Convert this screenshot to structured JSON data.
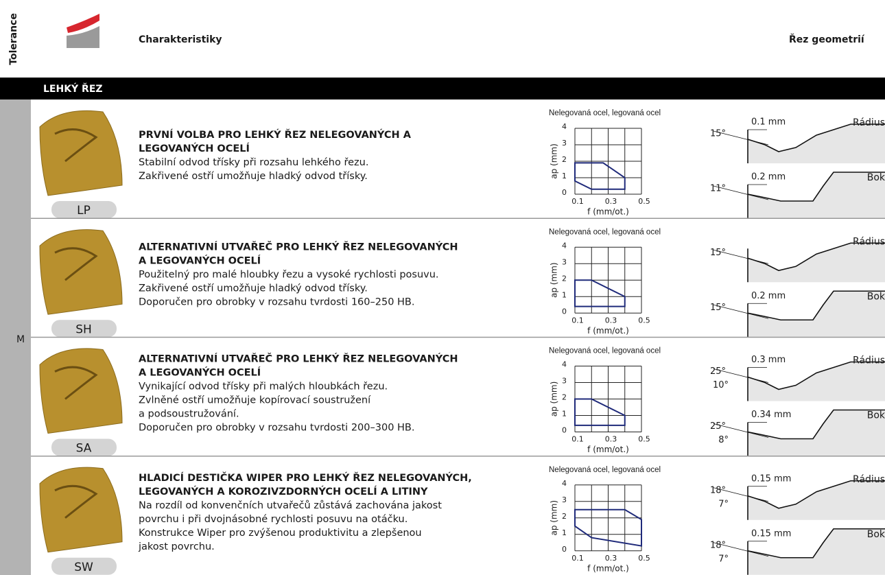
{
  "header": {
    "tolerance": "Tolerance",
    "characteristics": "Charakteristiky",
    "geometry": "Řez geometrií"
  },
  "section": "LEHKÝ ŘEZ",
  "tolerance_class": "M",
  "rows": [
    {
      "code": "LP",
      "heading": [
        "PRVNÍ VOLBA PRO LEHKÝ ŘEZ NELEGOVANÝCH A",
        "LEGOVANÝCH OCELÍ"
      ],
      "description": [
        "Stabilní odvod třísky při rozsahu lehkého řezu.",
        "Zakřivené ostří umožňuje hladký odvod třísky."
      ],
      "chart": {
        "type": "region",
        "title": "Nelegovaná ocel, legovaná ocel",
        "xlabel": "f (mm/ot.)",
        "ylabel": "ap (mm)",
        "xlim": [
          0.1,
          0.5
        ],
        "ylim": [
          0,
          4
        ],
        "xticks": [
          0.1,
          0.3,
          0.5
        ],
        "yticks": [
          0,
          1,
          2,
          3,
          4
        ],
        "xgrid": [
          0.1,
          0.2,
          0.3,
          0.4,
          0.5
        ],
        "color": "#1f2a7a",
        "region": {
          "f": [
            0.1,
            0.27,
            0.4,
            0.4,
            0.2,
            0.1
          ],
          "ap": [
            1.9,
            1.9,
            1.0,
            0.3,
            0.3,
            0.8
          ]
        }
      },
      "profiles": [
        {
          "name": "Rádius",
          "angles": [
            "15°"
          ],
          "width": "0.1 mm"
        },
        {
          "name": "Bok",
          "angles": [
            "11°"
          ],
          "width": "0.2 mm"
        }
      ]
    },
    {
      "code": "SH",
      "heading": [
        "ALTERNATIVNÍ UTVAŘEČ PRO LEHKÝ ŘEZ NELEGOVANÝCH",
        "A LEGOVANÝCH OCELÍ"
      ],
      "description": [
        "Použitelný pro malé hloubky řezu a vysoké rychlosti posuvu.",
        "Zakřivené ostří umožňuje hladký odvod třísky.",
        "Doporučen pro obrobky v rozsahu tvrdosti 160–250 HB."
      ],
      "chart": {
        "type": "region",
        "title": "Nelegovaná ocel, legovaná ocel",
        "xlabel": "f (mm/ot.)",
        "ylabel": "ap (mm)",
        "xlim": [
          0.1,
          0.5
        ],
        "ylim": [
          0,
          4
        ],
        "xticks": [
          0.1,
          0.3,
          0.5
        ],
        "yticks": [
          0,
          1,
          2,
          3,
          4
        ],
        "xgrid": [
          0.1,
          0.2,
          0.3,
          0.4,
          0.5
        ],
        "color": "#1f2a7a",
        "region": {
          "f": [
            0.1,
            0.2,
            0.4,
            0.4,
            0.1
          ],
          "ap": [
            2.0,
            2.0,
            1.0,
            0.4,
            0.4
          ]
        }
      },
      "profiles": [
        {
          "name": "Rádius",
          "angles": [
            "15°"
          ]
        },
        {
          "name": "Bok",
          "angles": [
            "15°"
          ],
          "width": "0.2 mm"
        }
      ]
    },
    {
      "code": "SA",
      "heading": [
        "ALTERNATIVNÍ UTVAŘEČ PRO LEHKÝ ŘEZ NELEGOVANÝCH",
        "A LEGOVANÝCH OCELÍ"
      ],
      "description": [
        "Vynikající odvod třísky při malých hloubkách řezu.",
        "Zvlněné ostří umožňuje kopírovací soustružení",
        "a podsoustružování.",
        "Doporučen pro obrobky v rozsahu tvrdosti 200–300 HB."
      ],
      "chart": {
        "type": "region",
        "title": "Nelegovaná ocel, legovaná ocel",
        "xlabel": "f (mm/ot.)",
        "ylabel": "ap (mm)",
        "xlim": [
          0.1,
          0.5
        ],
        "ylim": [
          0,
          4
        ],
        "xticks": [
          0.1,
          0.3,
          0.5
        ],
        "yticks": [
          0,
          1,
          2,
          3,
          4
        ],
        "xgrid": [
          0.1,
          0.2,
          0.3,
          0.4,
          0.5
        ],
        "color": "#1f2a7a",
        "region": {
          "f": [
            0.1,
            0.2,
            0.4,
            0.4,
            0.1
          ],
          "ap": [
            2.0,
            2.0,
            1.0,
            0.4,
            0.4
          ]
        }
      },
      "profiles": [
        {
          "name": "Rádius",
          "angles": [
            "25°",
            "10°"
          ],
          "width": "0.3 mm"
        },
        {
          "name": "Bok",
          "angles": [
            "25°",
            "8°"
          ],
          "width": "0.34 mm"
        }
      ]
    },
    {
      "code": "SW",
      "heading": [
        "HLADICÍ DESTIČKA WIPER PRO LEHKÝ ŘEZ NELEGOVANÝCH,",
        "LEGOVANÝCH A KOROZIVZDORNÝCH OCELÍ A LITINY"
      ],
      "description": [
        "Na rozdíl od konvenčních utvařečů zůstává zachována jakost",
        "povrchu i při dvojnásobné rychlosti posuvu na otáčku.",
        "Konstrukce Wiper pro zvýšenou produktivitu a zlepšenou",
        "jakost povrchu."
      ],
      "chart": {
        "type": "region",
        "title": "Nelegovaná ocel, legovaná ocel",
        "xlabel": "f (mm/ot.)",
        "ylabel": "ap (mm)",
        "xlim": [
          0.1,
          0.5
        ],
        "ylim": [
          0,
          4
        ],
        "xticks": [
          0.1,
          0.3,
          0.5
        ],
        "yticks": [
          0,
          1,
          2,
          3,
          4
        ],
        "xgrid": [
          0.1,
          0.2,
          0.3,
          0.4,
          0.5
        ],
        "color": "#1f2a7a",
        "region": {
          "f": [
            0.1,
            0.4,
            0.5,
            0.5,
            0.2,
            0.1
          ],
          "ap": [
            2.5,
            2.5,
            1.9,
            0.3,
            0.8,
            1.5
          ]
        }
      },
      "profiles": [
        {
          "name": "Rádius",
          "angles": [
            "18°",
            "7°"
          ],
          "width": "0.15 mm"
        },
        {
          "name": "Bok",
          "angles": [
            "18°",
            "7°"
          ],
          "width": "0.15 mm"
        }
      ]
    }
  ]
}
